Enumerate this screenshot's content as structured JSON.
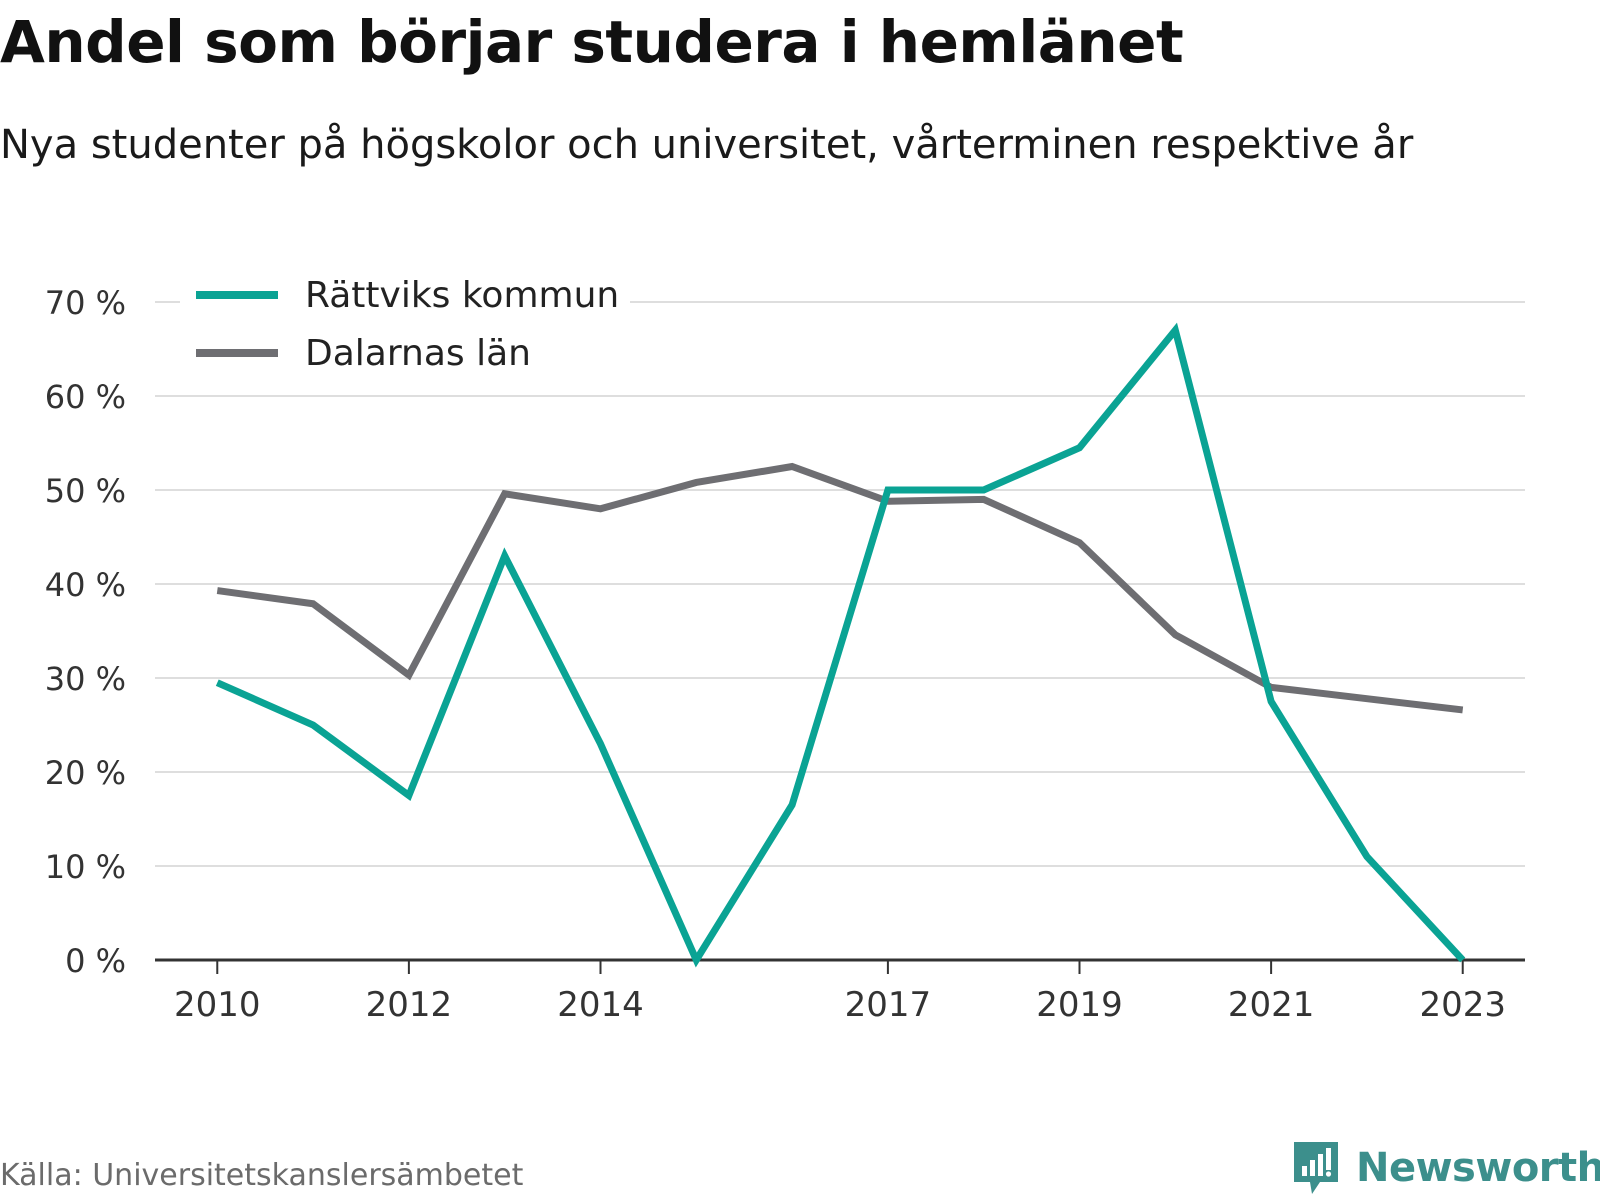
{
  "header": {
    "title": "Andel som börjar studera i hemlänet",
    "subtitle": "Nya studenter på högskolor och universitet, vårterminen respektive år"
  },
  "footer": {
    "source": "Källa: Universitetskanslersämbetet",
    "brand": "Newsworthy",
    "brand_icon": "chart-speech-bubble-icon"
  },
  "colors": {
    "series_1": "#0aa394",
    "series_2": "#6e6e72",
    "grid": "#dedede",
    "axis": "#333333",
    "brand": "#3c8f8c"
  },
  "chart_data": {
    "type": "line",
    "x": [
      2010,
      2011,
      2012,
      2013,
      2014,
      2015,
      2016,
      2017,
      2018,
      2019,
      2020,
      2021,
      2022,
      2023
    ],
    "series": [
      {
        "name": "Rättviks kommun",
        "values": [
          29.5,
          25,
          17.5,
          43,
          23,
          0,
          16.5,
          50,
          50,
          54.5,
          67,
          27.5,
          11,
          0
        ]
      },
      {
        "name": "Dalarnas län",
        "values": [
          39.3,
          37.9,
          30.3,
          49.6,
          48,
          50.8,
          52.5,
          48.8,
          49,
          44.4,
          34.6,
          29,
          27.8,
          26.6
        ]
      }
    ],
    "x_ticks": [
      2010,
      2012,
      2014,
      2017,
      2019,
      2021,
      2023
    ],
    "x_tick_labels": [
      "2010",
      "2012",
      "2014",
      "2017",
      "2019",
      "2021",
      "2023"
    ],
    "y_ticks": [
      0,
      10,
      20,
      30,
      40,
      50,
      60,
      70
    ],
    "y_tick_labels": [
      "0 %",
      "10 %",
      "20 %",
      "30 %",
      "40 %",
      "50 %",
      "60 %",
      "70 %"
    ],
    "ylim": [
      0,
      70
    ],
    "xlim": [
      2009.35,
      2023.65
    ],
    "grid": true,
    "legend": "top-left"
  }
}
